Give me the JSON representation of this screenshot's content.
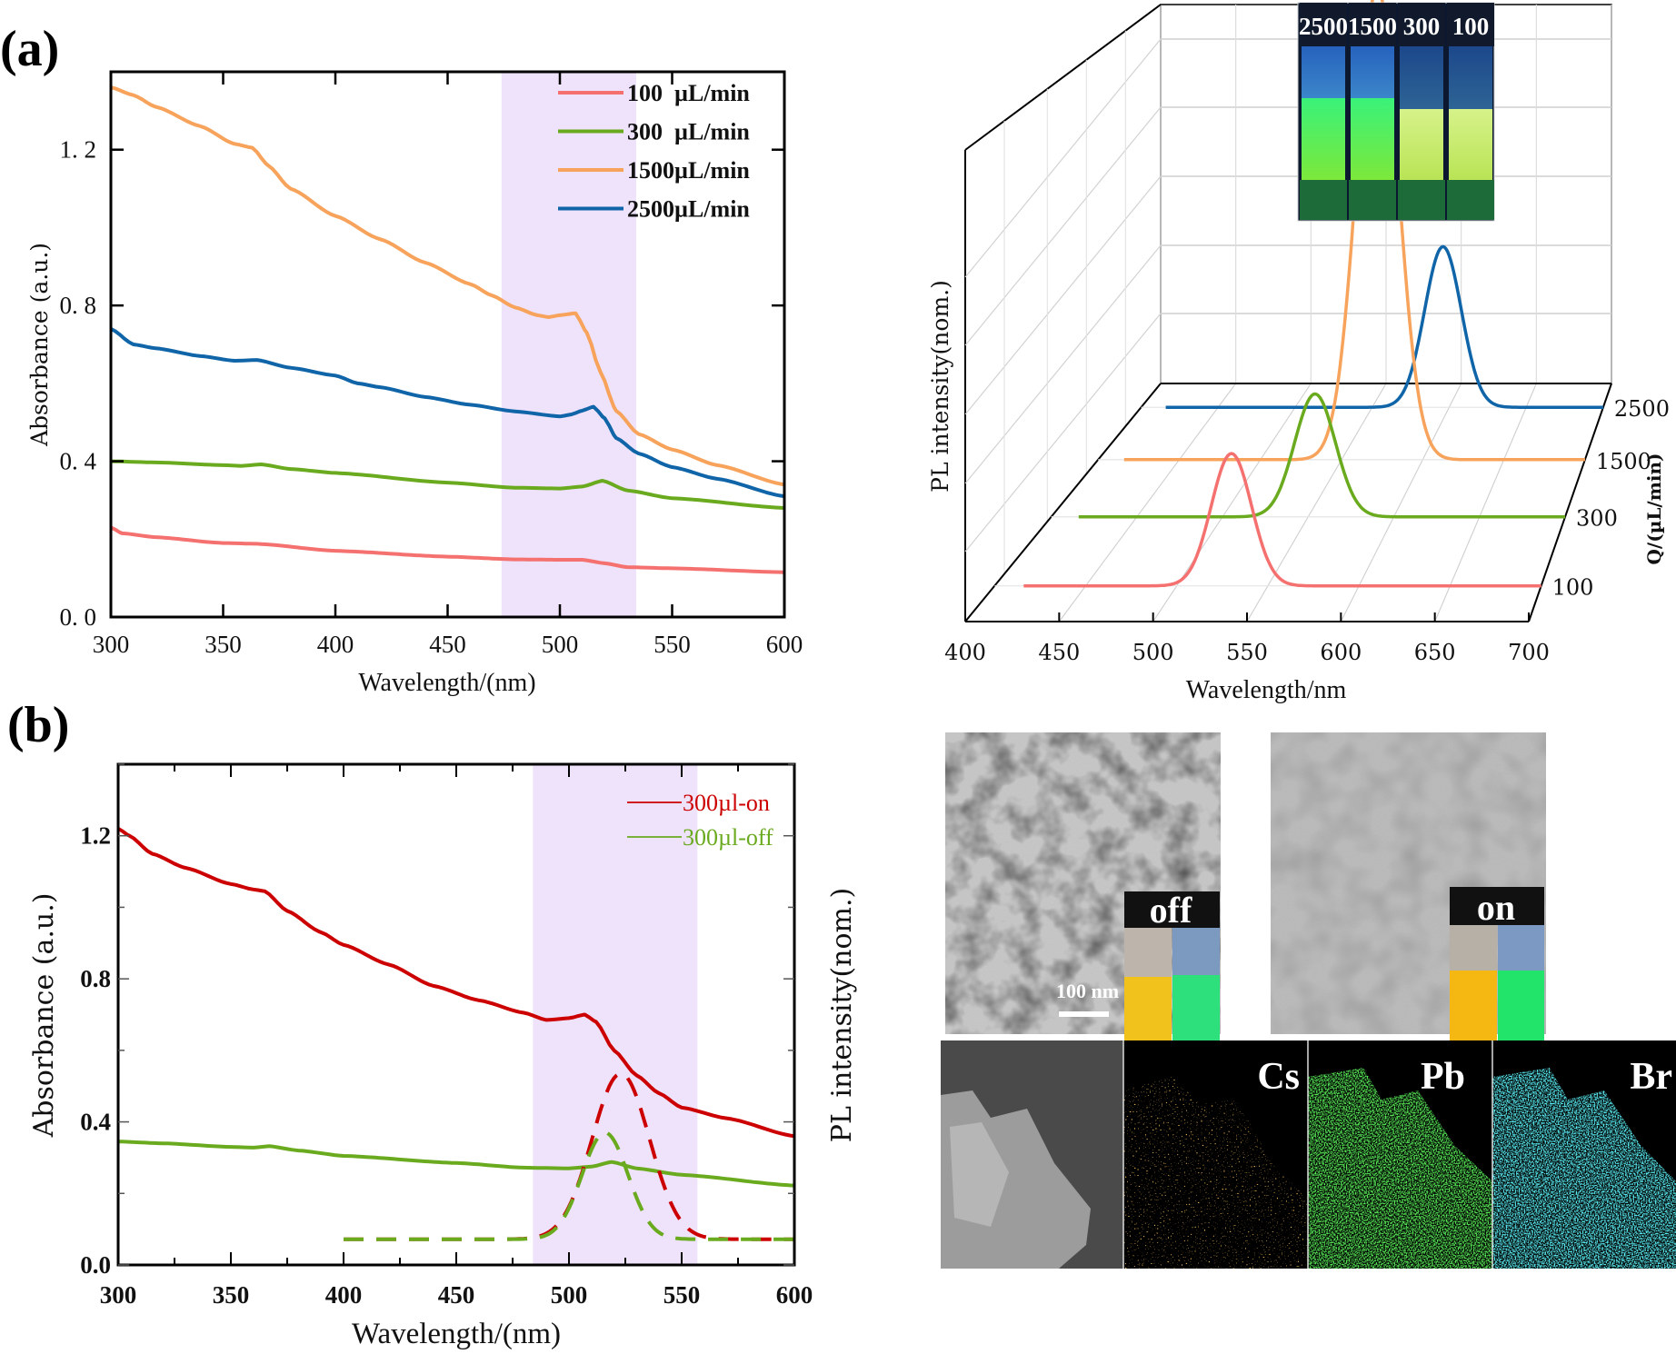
{
  "figure": {
    "panel_a_label": "(a)",
    "panel_b_label": "(b)",
    "tem_off_label": "off",
    "tem_on_label": "on",
    "scale_bar_label": "100 nm",
    "eds_labels": [
      "Cs",
      "Pb",
      "Br"
    ],
    "vial_labels": [
      "2500",
      "1500",
      "300",
      "100"
    ],
    "colors": {
      "red_a": "#f4716f",
      "green_a": "#6aaa1e",
      "orange_a": "#f7a35c",
      "blue_a": "#1065a8",
      "red_b": "#cc0000",
      "green_b": "#6aaa1e",
      "band": "#efe3fb"
    }
  },
  "chart_data": [
    {
      "id": "panel-a-absorbance",
      "type": "line",
      "title": "",
      "xlabel": "Wavelength/(nm)",
      "ylabel": "Absorbance (a.u.)",
      "xlim": [
        300,
        600
      ],
      "ylim": [
        0,
        1.4
      ],
      "xticks": [
        300,
        350,
        400,
        450,
        500,
        550,
        600
      ],
      "yticks": [
        0.0,
        0.4,
        0.8,
        1.2
      ],
      "ytick_labels": [
        "0. 0",
        "0. 4",
        "0. 8",
        "1. 2"
      ],
      "grid": false,
      "legend_position": "top-right",
      "shaded_band": [
        474,
        534
      ],
      "series": [
        {
          "name": "100  µL/min",
          "color": "#f4716f",
          "x": [
            300,
            305,
            320,
            350,
            365,
            400,
            450,
            480,
            500,
            510,
            520,
            530,
            550,
            600
          ],
          "y": [
            0.23,
            0.215,
            0.205,
            0.19,
            0.188,
            0.17,
            0.155,
            0.148,
            0.147,
            0.147,
            0.138,
            0.128,
            0.125,
            0.115
          ]
        },
        {
          "name": "300  µL/min",
          "color": "#6aaa1e",
          "x": [
            300,
            320,
            350,
            358,
            367,
            380,
            400,
            450,
            480,
            500,
            510,
            519,
            530,
            550,
            600
          ],
          "y": [
            0.4,
            0.397,
            0.39,
            0.388,
            0.392,
            0.38,
            0.37,
            0.345,
            0.332,
            0.33,
            0.335,
            0.35,
            0.325,
            0.305,
            0.28
          ]
        },
        {
          "name": "1500µL/min",
          "color": "#f7a35c",
          "x": [
            300,
            310,
            320,
            340,
            355,
            363,
            370,
            380,
            400,
            420,
            440,
            460,
            470,
            480,
            490,
            495,
            500,
            507,
            512,
            518,
            525,
            535,
            550,
            570,
            600
          ],
          "y": [
            1.36,
            1.34,
            1.31,
            1.26,
            1.215,
            1.205,
            1.16,
            1.1,
            1.03,
            0.97,
            0.91,
            0.855,
            0.825,
            0.795,
            0.775,
            0.77,
            0.775,
            0.78,
            0.73,
            0.63,
            0.53,
            0.47,
            0.43,
            0.39,
            0.34
          ]
        },
        {
          "name": "2500µL/min",
          "color": "#1065a8",
          "x": [
            300,
            310,
            320,
            340,
            355,
            365,
            380,
            400,
            410,
            420,
            440,
            460,
            480,
            500,
            505,
            510,
            515,
            520,
            525,
            535,
            550,
            570,
            600
          ],
          "y": [
            0.74,
            0.7,
            0.69,
            0.67,
            0.658,
            0.66,
            0.64,
            0.62,
            0.6,
            0.59,
            0.565,
            0.545,
            0.528,
            0.515,
            0.52,
            0.53,
            0.54,
            0.51,
            0.46,
            0.42,
            0.385,
            0.355,
            0.31
          ]
        }
      ]
    },
    {
      "id": "panel-a-pl-3d",
      "type": "line",
      "title": "",
      "xlabel": "Wavelength/nm",
      "ylabel": "PL intensity(nom.)",
      "zlabel": "Q/(µL/min)",
      "xlim": [
        400,
        700
      ],
      "xticks": [
        400,
        450,
        500,
        550,
        600,
        650,
        700
      ],
      "z_categories": [
        "100",
        "300",
        "1500",
        "2500"
      ],
      "grid": true,
      "series": [
        {
          "name": "100",
          "color": "#f4716f",
          "x_range": [
            416,
            700
          ],
          "peak_nm": 530,
          "fwhm_nm": 26,
          "peak_intensity": 0.28
        },
        {
          "name": "300",
          "color": "#6aaa1e",
          "x_range": [
            416,
            700
          ],
          "peak_nm": 554,
          "fwhm_nm": 28,
          "peak_intensity": 0.26
        },
        {
          "name": "1500",
          "color": "#f7a35c",
          "x_range": [
            416,
            700
          ],
          "peak_nm": 572,
          "fwhm_nm": 30,
          "peak_intensity": 1.0
        },
        {
          "name": "2500",
          "color": "#1065a8",
          "x_range": [
            416,
            700
          ],
          "peak_nm": 596,
          "fwhm_nm": 28,
          "peak_intensity": 0.34
        }
      ]
    },
    {
      "id": "panel-b-absorbance-pl",
      "type": "line",
      "title": "",
      "xlabel": "Wavelength/(nm)",
      "ylabel": "Absorbance (a.u.)",
      "ylabel_right": "PL intensity(nom.)",
      "xlim": [
        300,
        600
      ],
      "ylim": [
        0,
        1.4
      ],
      "xticks": [
        300,
        350,
        400,
        450,
        500,
        550,
        600
      ],
      "yticks": [
        0.0,
        0.4,
        0.8,
        1.2
      ],
      "ytick_labels": [
        "0.0",
        "0.4",
        "0.8",
        "1.2"
      ],
      "grid": false,
      "legend_position": "top-right",
      "shaded_band": [
        484,
        557
      ],
      "series": [
        {
          "name": "300µl-on",
          "color": "#cc0000",
          "style": "solid",
          "x": [
            300,
            305,
            315,
            330,
            350,
            360,
            365,
            375,
            390,
            400,
            420,
            440,
            460,
            480,
            490,
            500,
            507,
            512,
            520,
            530,
            540,
            550,
            570,
            600
          ],
          "y": [
            1.22,
            1.2,
            1.15,
            1.11,
            1.065,
            1.05,
            1.045,
            0.99,
            0.93,
            0.895,
            0.84,
            0.78,
            0.74,
            0.705,
            0.685,
            0.69,
            0.7,
            0.68,
            0.6,
            0.53,
            0.48,
            0.44,
            0.41,
            0.36
          ]
        },
        {
          "name": "300µl-off",
          "color": "#6aaa1e",
          "style": "solid",
          "x": [
            300,
            320,
            350,
            360,
            367,
            380,
            400,
            450,
            480,
            500,
            510,
            519,
            530,
            550,
            600
          ],
          "y": [
            0.345,
            0.34,
            0.33,
            0.328,
            0.332,
            0.32,
            0.305,
            0.285,
            0.272,
            0.27,
            0.275,
            0.288,
            0.27,
            0.252,
            0.222
          ]
        },
        {
          "name": "300µl-on PL",
          "color": "#cc0000",
          "style": "dashed",
          "x_range": [
            400,
            600
          ],
          "peak_nm": 523,
          "fwhm_nm": 30,
          "peak_value": 0.535,
          "baseline": 0.072
        },
        {
          "name": "300µl-off PL",
          "color": "#6aaa1e",
          "style": "dashed",
          "x_range": [
            400,
            600
          ],
          "peak_nm": 516,
          "fwhm_nm": 24,
          "peak_value": 0.37,
          "baseline": 0.072
        }
      ]
    }
  ]
}
